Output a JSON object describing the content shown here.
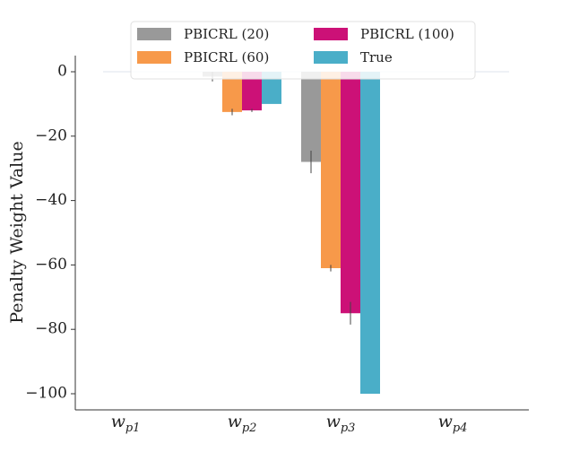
{
  "chart_data": {
    "type": "bar",
    "ylabel": "Penalty Weight Value",
    "xlabel": "",
    "ylim": [
      -105,
      5
    ],
    "yticks": [
      0,
      -20,
      -40,
      -60,
      -80,
      -100
    ],
    "ytick_labels": [
      "0",
      "−20",
      "−40",
      "−60",
      "−80",
      "−100"
    ],
    "categories": [
      {
        "base": "w",
        "sub": "p1"
      },
      {
        "base": "w",
        "sub": "p2"
      },
      {
        "base": "w",
        "sub": "p3"
      },
      {
        "base": "w",
        "sub": "p4"
      }
    ],
    "series": [
      {
        "name": "PBICRL (20)",
        "color": "#999999",
        "values": [
          0,
          -1.5,
          -28,
          0
        ],
        "errors": [
          0,
          1.5,
          3.5,
          0
        ]
      },
      {
        "name": "PBICRL (60)",
        "color": "#f7994a",
        "values": [
          0,
          -12.5,
          -61,
          0
        ],
        "errors": [
          0,
          1,
          1,
          0
        ]
      },
      {
        "name": "PBICRL (100)",
        "color": "#cc1177",
        "values": [
          0,
          -12,
          -75,
          0
        ],
        "errors": [
          0,
          0.5,
          3.5,
          0
        ]
      },
      {
        "name": "True",
        "color": "#4aaec8",
        "values": [
          0,
          -10,
          -100,
          0
        ],
        "errors": [
          0,
          0,
          0,
          0
        ]
      }
    ],
    "grid": false,
    "legend_position": "top-center",
    "legend_columns": 2
  }
}
